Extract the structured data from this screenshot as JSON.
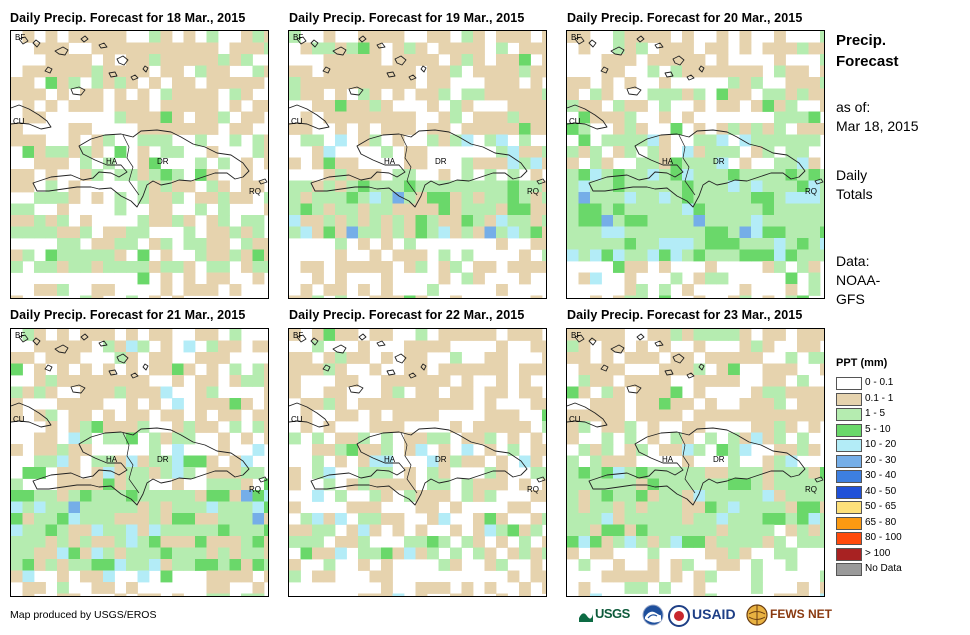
{
  "panels": [
    {
      "title": "Daily Precip. Forecast for 18 Mar., 2015"
    },
    {
      "title": "Daily Precip. Forecast for 19 Mar., 2015"
    },
    {
      "title": "Daily Precip. Forecast for 20 Mar., 2015"
    },
    {
      "title": "Daily Precip. Forecast for 21 Mar., 2015"
    },
    {
      "title": "Daily Precip. Forecast for 22 Mar., 2015"
    },
    {
      "title": "Daily Precip. Forecast for 23 Mar., 2015"
    }
  ],
  "map_labels": {
    "bf": "BF",
    "cu": "CU",
    "ha": "HA",
    "dr": "DR",
    "rq": "RQ"
  },
  "side": {
    "title_line1": "Precip.",
    "title_line2": "Forecast",
    "asof_line1": "as of:",
    "asof_line2": "Mar 18, 2015",
    "daily_line1": "Daily",
    "daily_line2": "Totals",
    "data_line1": "Data:",
    "data_line2": "NOAA-",
    "data_line3": "GFS"
  },
  "legend": {
    "title": "PPT (mm)",
    "items": [
      {
        "label": "0 - 0.1",
        "color": "#ffffff"
      },
      {
        "label": "0.1 - 1",
        "color": "#e6d3ae"
      },
      {
        "label": "1 - 5",
        "color": "#b5ecb0"
      },
      {
        "label": "5 - 10",
        "color": "#6ad86a"
      },
      {
        "label": "10 - 20",
        "color": "#b3ecf7"
      },
      {
        "label": "20 - 30",
        "color": "#75aee8"
      },
      {
        "label": "30 - 40",
        "color": "#3d7fe0"
      },
      {
        "label": "40 - 50",
        "color": "#1f50d8"
      },
      {
        "label": "50 - 65",
        "color": "#fde07a"
      },
      {
        "label": "65 - 80",
        "color": "#fb9a12"
      },
      {
        "label": "80 - 100",
        "color": "#ff4a0c"
      },
      {
        "label": "> 100",
        "color": "#a82222"
      },
      {
        "label": "No Data",
        "color": "#9a9a9a"
      }
    ]
  },
  "credit": "Map produced by USGS/EROS",
  "logos": {
    "usgs": "USGS",
    "usaid": "USAID",
    "fewsnet": "FEWS NET"
  }
}
